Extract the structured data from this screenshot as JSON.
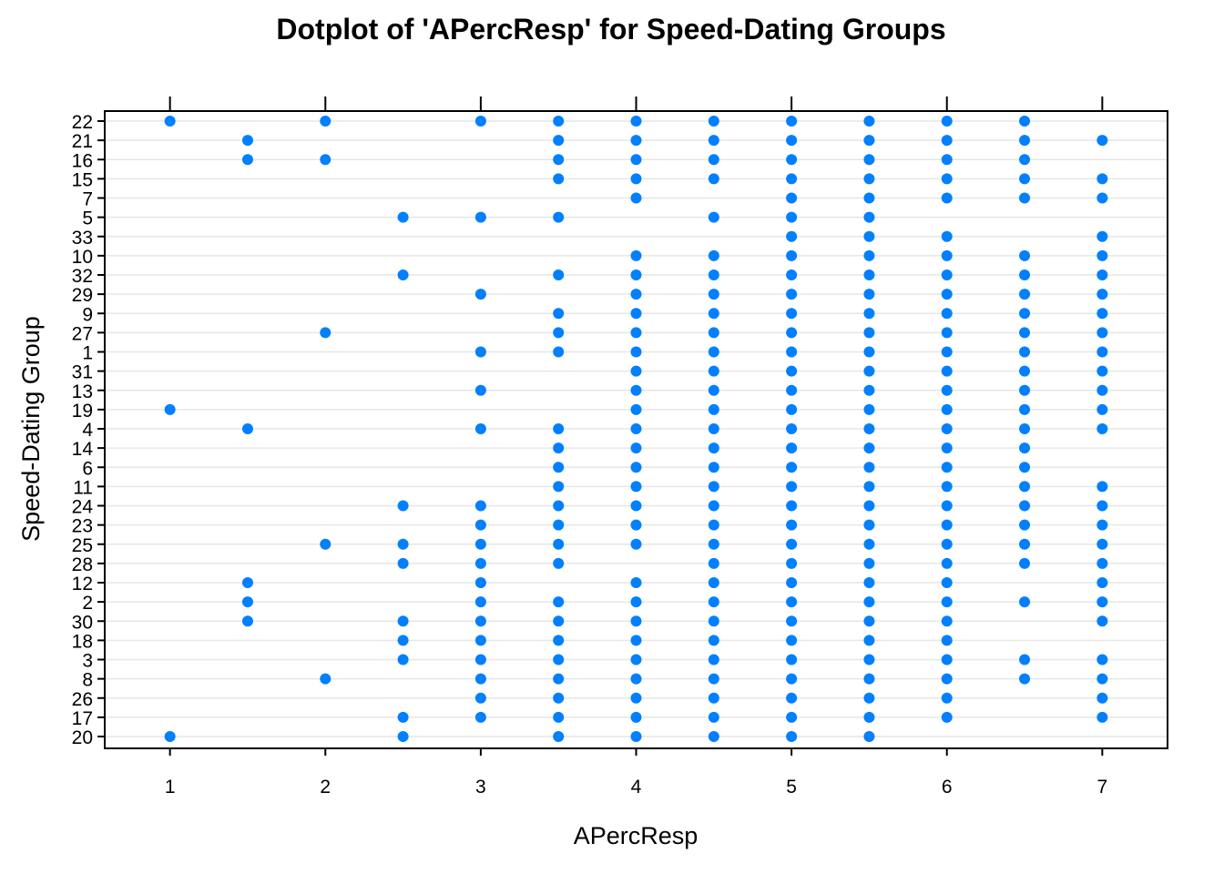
{
  "chart_data": {
    "type": "scatter",
    "title": "Dotplot of 'APercResp' for Speed-Dating Groups",
    "xlabel": "APercResp",
    "ylabel": "Speed-Dating Group",
    "xlim": [
      0.58,
      7.42
    ],
    "x_ticks": [
      1,
      2,
      3,
      4,
      5,
      6,
      7
    ],
    "grid": "horizontal reference lines",
    "point_color": "#0080ff",
    "groups": [
      {
        "name": "22",
        "x": [
          1,
          2,
          3,
          3.5,
          4,
          4.5,
          5,
          5.5,
          6,
          6.5
        ]
      },
      {
        "name": "21",
        "x": [
          1.5,
          3.5,
          4,
          4.5,
          5,
          5.5,
          6,
          6.5,
          7
        ]
      },
      {
        "name": "16",
        "x": [
          1.5,
          2,
          3.5,
          4,
          4.5,
          5,
          5.5,
          6,
          6.5
        ]
      },
      {
        "name": "15",
        "x": [
          3.5,
          4,
          4.5,
          5,
          5.5,
          6,
          6.5,
          7
        ]
      },
      {
        "name": "7",
        "x": [
          4,
          5,
          5.5,
          6,
          6.5,
          7
        ]
      },
      {
        "name": "5",
        "x": [
          2.5,
          3,
          3.5,
          4.5,
          5,
          5.5
        ]
      },
      {
        "name": "33",
        "x": [
          5,
          5.5,
          6,
          7
        ]
      },
      {
        "name": "10",
        "x": [
          4,
          4.5,
          5,
          5.5,
          6,
          6.5,
          7
        ]
      },
      {
        "name": "32",
        "x": [
          2.5,
          3.5,
          4,
          4.5,
          5,
          5.5,
          6,
          6.5,
          7
        ]
      },
      {
        "name": "29",
        "x": [
          3,
          4,
          4.5,
          5,
          5.5,
          6,
          6.5,
          7
        ]
      },
      {
        "name": "9",
        "x": [
          3.5,
          4,
          4.5,
          5,
          5.5,
          6,
          6.5,
          7
        ]
      },
      {
        "name": "27",
        "x": [
          2,
          3.5,
          4,
          4.5,
          5,
          5.5,
          6,
          6.5,
          7
        ]
      },
      {
        "name": "1",
        "x": [
          3,
          3.5,
          4,
          4.5,
          5,
          5.5,
          6,
          6.5,
          7
        ]
      },
      {
        "name": "31",
        "x": [
          4,
          4.5,
          5,
          5.5,
          6,
          6.5,
          7
        ]
      },
      {
        "name": "13",
        "x": [
          3,
          4,
          4.5,
          5,
          5.5,
          6,
          6.5,
          7
        ]
      },
      {
        "name": "19",
        "x": [
          1,
          4,
          4.5,
          5,
          5.5,
          6,
          6.5,
          7
        ]
      },
      {
        "name": "4",
        "x": [
          1.5,
          3,
          3.5,
          4,
          4.5,
          5,
          5.5,
          6,
          6.5,
          7
        ]
      },
      {
        "name": "14",
        "x": [
          3.5,
          4,
          4.5,
          5,
          5.5,
          6,
          6.5
        ]
      },
      {
        "name": "6",
        "x": [
          3.5,
          4,
          4.5,
          5,
          5.5,
          6,
          6.5
        ]
      },
      {
        "name": "11",
        "x": [
          3.5,
          4,
          4.5,
          5,
          5.5,
          6,
          6.5,
          7
        ]
      },
      {
        "name": "24",
        "x": [
          2.5,
          3,
          3.5,
          4,
          4.5,
          5,
          5.5,
          6,
          6.5,
          7
        ]
      },
      {
        "name": "23",
        "x": [
          3,
          3.5,
          4,
          4.5,
          5,
          5.5,
          6,
          6.5,
          7
        ]
      },
      {
        "name": "25",
        "x": [
          2,
          2.5,
          3,
          3.5,
          4,
          4.5,
          5,
          5.5,
          6,
          6.5,
          7
        ]
      },
      {
        "name": "28",
        "x": [
          2.5,
          3,
          3.5,
          4.5,
          5,
          5.5,
          6,
          6.5,
          7
        ]
      },
      {
        "name": "12",
        "x": [
          1.5,
          3,
          4,
          4.5,
          5,
          5.5,
          6,
          7
        ]
      },
      {
        "name": "2",
        "x": [
          1.5,
          3,
          3.5,
          4,
          4.5,
          5,
          5.5,
          6,
          6.5,
          7
        ]
      },
      {
        "name": "30",
        "x": [
          1.5,
          2.5,
          3,
          3.5,
          4,
          4.5,
          5,
          5.5,
          6,
          7
        ]
      },
      {
        "name": "18",
        "x": [
          2.5,
          3,
          3.5,
          4,
          4.5,
          5,
          5.5,
          6
        ]
      },
      {
        "name": "3",
        "x": [
          2.5,
          3,
          3.5,
          4,
          4.5,
          5,
          5.5,
          6,
          6.5,
          7
        ]
      },
      {
        "name": "8",
        "x": [
          2,
          3,
          3.5,
          4,
          4.5,
          5,
          5.5,
          6,
          6.5,
          7
        ]
      },
      {
        "name": "26",
        "x": [
          3,
          3.5,
          4,
          4.5,
          5,
          5.5,
          6,
          7
        ]
      },
      {
        "name": "17",
        "x": [
          2.5,
          3,
          3.5,
          4,
          4.5,
          5,
          5.5,
          6,
          7
        ]
      },
      {
        "name": "20",
        "x": [
          1,
          2.5,
          3.5,
          4,
          4.5,
          5,
          5.5
        ]
      }
    ]
  }
}
